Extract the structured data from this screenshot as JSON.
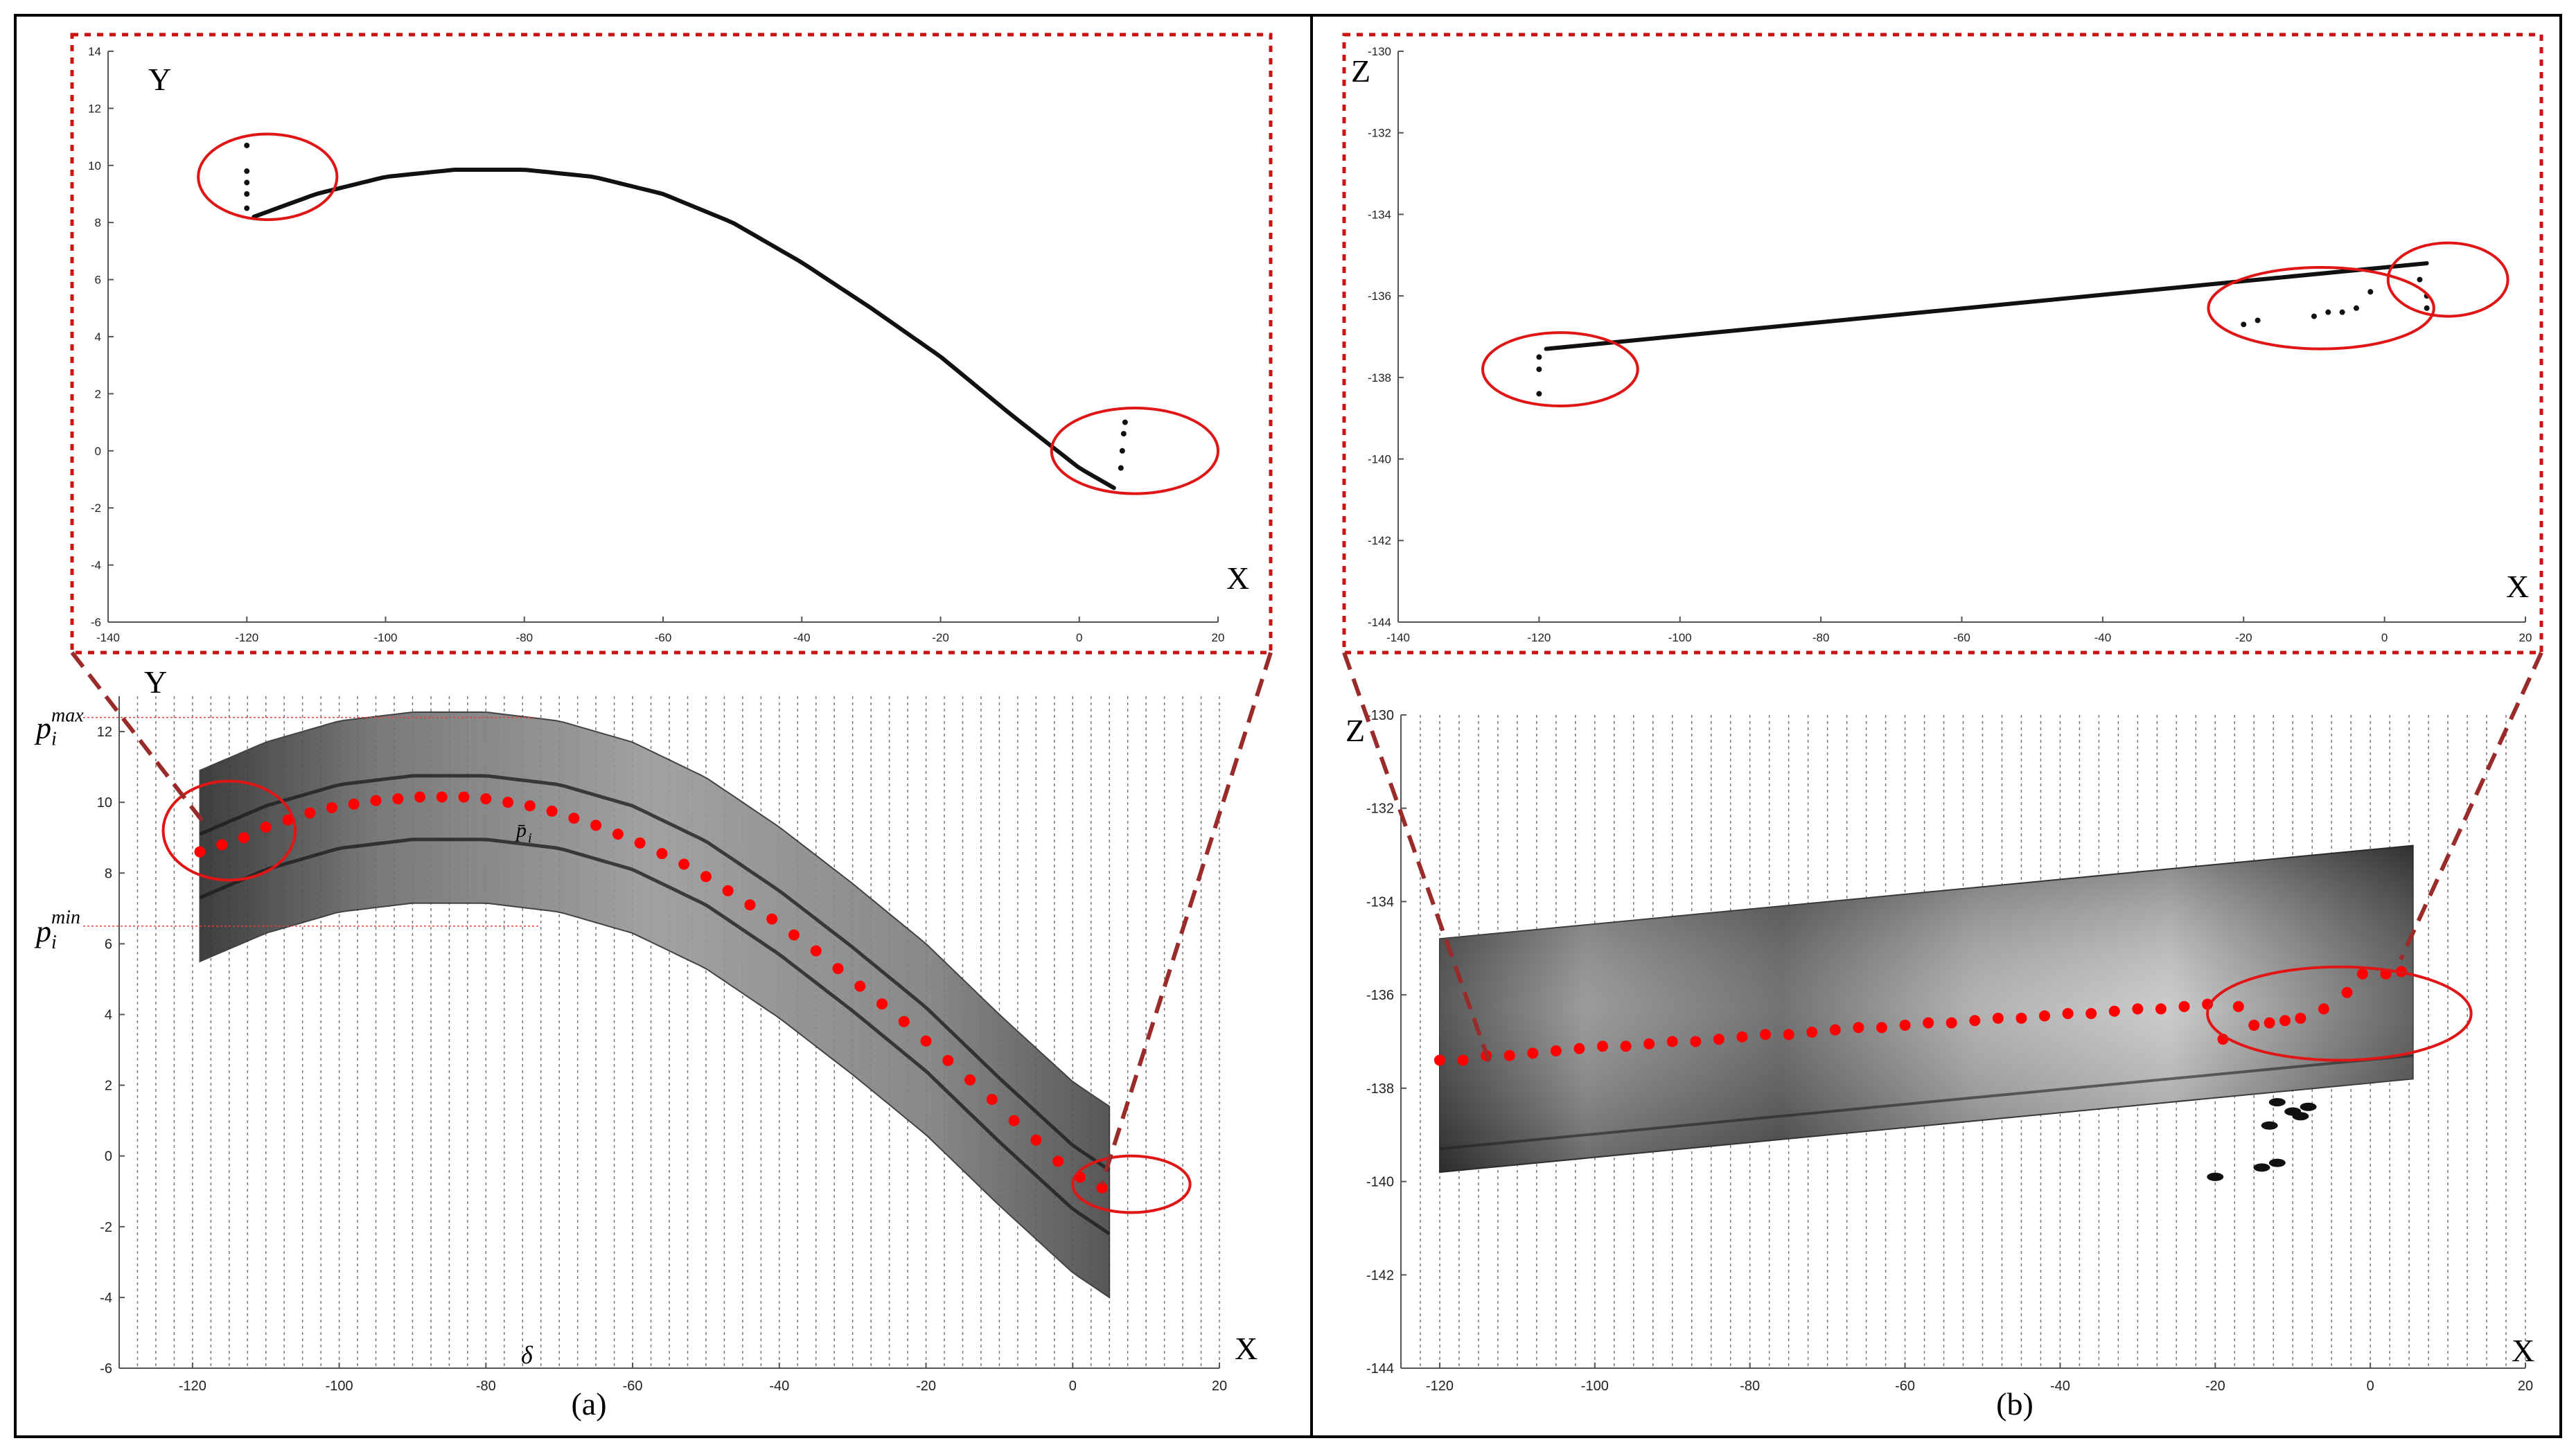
{
  "colors": {
    "frame": "#000000",
    "dashed_box": "#cc1111",
    "connector": "#9a2b2b",
    "circle": "#e01616",
    "point": "#111111",
    "red_point": "#ff0000",
    "strip_dark": "#3a3a3a",
    "strip_light": "#c8c8c8"
  },
  "chart_data": [
    {
      "id": "a-top",
      "type": "scatter",
      "ylabel": "Y",
      "xlabel": "X",
      "xlim": [
        -140,
        20
      ],
      "ylim": [
        -6,
        14
      ],
      "xticks": [
        "-140",
        "-120",
        "-100",
        "-80",
        "-60",
        "-40",
        "-20",
        "0",
        "20"
      ],
      "yticks": [
        "-6",
        "-4",
        "-2",
        "0",
        "2",
        "4",
        "6",
        "8",
        "10",
        "12",
        "14"
      ],
      "curve": {
        "x": [
          -119,
          -110,
          -100,
          -90,
          -80,
          -70,
          -60,
          -50,
          -40,
          -30,
          -20,
          -10,
          0,
          5
        ],
        "y": [
          8.2,
          9.0,
          9.6,
          9.85,
          9.85,
          9.6,
          9.0,
          8.0,
          6.6,
          5.0,
          3.3,
          1.3,
          -0.6,
          -1.3
        ]
      },
      "outliers": {
        "x": [
          -120,
          -120,
          -120,
          -120,
          -120,
          6.0,
          6.2,
          6.4,
          6.6
        ],
        "y": [
          10.7,
          9.8,
          9.4,
          9.0,
          8.5,
          -0.6,
          0.0,
          0.6,
          1.0
        ]
      },
      "circled_regions": [
        {
          "cx": -117,
          "cy": 9.6,
          "rx": 10,
          "ry": 1.5
        },
        {
          "cx": 8,
          "cy": 0,
          "rx": 12,
          "ry": 1.5
        }
      ]
    },
    {
      "id": "a-bottom",
      "type": "scatter",
      "ylabel": "Y",
      "xlabel": "X",
      "caption": "(a)",
      "xlim": [
        -130,
        20
      ],
      "ylim": [
        -6,
        13
      ],
      "xticks": [
        "-120",
        "-100",
        "-80",
        "-60",
        "-40",
        "-20",
        "0",
        "20"
      ],
      "yticks": [
        "-6",
        "-4",
        "-2",
        "0",
        "2",
        "4",
        "6",
        "8",
        "10",
        "12"
      ],
      "annotations": {
        "p_max": "p",
        "p_max_sup": "max",
        "p_max_sub": "i",
        "p_min": "p",
        "p_min_sup": "min",
        "p_min_sub": "i",
        "p_bar": "p̄",
        "p_bar_sub": "i",
        "delta": "δ"
      },
      "p_max_y": 12.4,
      "p_min_y": 6.5,
      "strip_center": {
        "x": [
          -119,
          -110,
          -100,
          -90,
          -80,
          -70,
          -60,
          -50,
          -40,
          -30,
          -20,
          -10,
          0,
          5
        ],
        "y": [
          8.2,
          9.0,
          9.6,
          9.85,
          9.85,
          9.6,
          9.0,
          8.0,
          6.6,
          5.0,
          3.3,
          1.3,
          -0.6,
          -1.3
        ]
      },
      "strip_half_width": 2.7,
      "red_points": {
        "x": [
          -119,
          -116,
          -113,
          -110,
          -107,
          -104,
          -101,
          -98,
          -95,
          -92,
          -89,
          -86,
          -83,
          -80,
          -77,
          -74,
          -71,
          -68,
          -65,
          -62,
          -59,
          -56,
          -53,
          -50,
          -47,
          -44,
          -41,
          -38,
          -35,
          -32,
          -29,
          -26,
          -23,
          -20,
          -17,
          -14,
          -11,
          -8,
          -5,
          -2,
          1,
          4
        ],
        "y": [
          8.6,
          8.8,
          9.0,
          9.3,
          9.5,
          9.7,
          9.85,
          9.95,
          10.05,
          10.1,
          10.15,
          10.15,
          10.15,
          10.1,
          10.0,
          9.9,
          9.75,
          9.55,
          9.35,
          9.1,
          8.85,
          8.55,
          8.25,
          7.9,
          7.5,
          7.1,
          6.7,
          6.25,
          5.8,
          5.3,
          4.8,
          4.3,
          3.8,
          3.25,
          2.7,
          2.15,
          1.6,
          1.0,
          0.45,
          -0.15,
          -0.6,
          -0.9
        ]
      },
      "circled_regions": [
        {
          "cx": -115,
          "cy": 9.2,
          "rx": 9,
          "ry": 1.4
        },
        {
          "cx": 8,
          "cy": -0.8,
          "rx": 8,
          "ry": 0.8
        }
      ]
    },
    {
      "id": "b-top",
      "type": "scatter",
      "ylabel": "Z",
      "xlabel": "X",
      "xlim": [
        -140,
        20
      ],
      "ylim": [
        -144,
        -130
      ],
      "xticks": [
        "-140",
        "-120",
        "-100",
        "-80",
        "-60",
        "-40",
        "-20",
        "0",
        "20"
      ],
      "yticks": [
        "-144",
        "-142",
        "-140",
        "-138",
        "-136",
        "-134",
        "-132",
        "-130"
      ],
      "line": {
        "x": [
          -119,
          6
        ],
        "y": [
          -137.3,
          -135.2
        ]
      },
      "outliers": {
        "x": [
          -120,
          -120,
          -120,
          -20,
          -18,
          -10,
          -8,
          -6,
          -4,
          -2,
          5,
          6,
          6
        ],
        "y": [
          -138.4,
          -137.8,
          -137.5,
          -136.7,
          -136.6,
          -136.5,
          -136.4,
          -136.4,
          -136.3,
          -135.9,
          -135.6,
          -136.0,
          -136.3
        ]
      },
      "circled_regions": [
        {
          "cx": -117,
          "cy": -137.8,
          "rx": 11,
          "ry": 0.9
        },
        {
          "cx": -9,
          "cy": -136.3,
          "rx": 16,
          "ry": 1.0
        },
        {
          "cx": 9,
          "cy": -135.6,
          "rx": 8.5,
          "ry": 0.9
        }
      ]
    },
    {
      "id": "b-bottom",
      "type": "scatter",
      "ylabel": "Z",
      "xlabel": "X",
      "caption": "(b)",
      "xlim": [
        -125,
        20
      ],
      "ylim": [
        -144,
        -130
      ],
      "xticks": [
        "-120",
        "-100",
        "-80",
        "-60",
        "-40",
        "-20",
        "0",
        "20"
      ],
      "yticks": [
        "-144",
        "-142",
        "-140",
        "-138",
        "-136",
        "-134",
        "-132",
        "-130"
      ],
      "red_points": {
        "x": [
          -120,
          -117,
          -114,
          -111,
          -108,
          -105,
          -102,
          -99,
          -96,
          -93,
          -90,
          -87,
          -84,
          -81,
          -78,
          -75,
          -72,
          -69,
          -66,
          -63,
          -60,
          -57,
          -54,
          -51,
          -48,
          -45,
          -42,
          -39,
          -36,
          -33,
          -30,
          -27,
          -24,
          -21,
          -19,
          -17,
          -15,
          -13,
          -11,
          -9,
          -6,
          -3,
          -1,
          2,
          4
        ],
        "y": [
          -137.4,
          -137.4,
          -137.3,
          -137.3,
          -137.25,
          -137.2,
          -137.15,
          -137.1,
          -137.1,
          -137.05,
          -137.0,
          -137.0,
          -136.95,
          -136.9,
          -136.85,
          -136.85,
          -136.8,
          -136.75,
          -136.7,
          -136.7,
          -136.65,
          -136.6,
          -136.6,
          -136.55,
          -136.5,
          -136.5,
          -136.45,
          -136.4,
          -136.4,
          -136.35,
          -136.3,
          -136.3,
          -136.25,
          -136.2,
          -136.95,
          -136.25,
          -136.65,
          -136.6,
          -136.55,
          -136.5,
          -136.3,
          -135.95,
          -135.55,
          -135.55,
          -135.5
        ]
      },
      "circled_regions": [
        {
          "cx": -4,
          "cy": -136.4,
          "rx": 17,
          "ry": 1.0
        }
      ]
    }
  ]
}
